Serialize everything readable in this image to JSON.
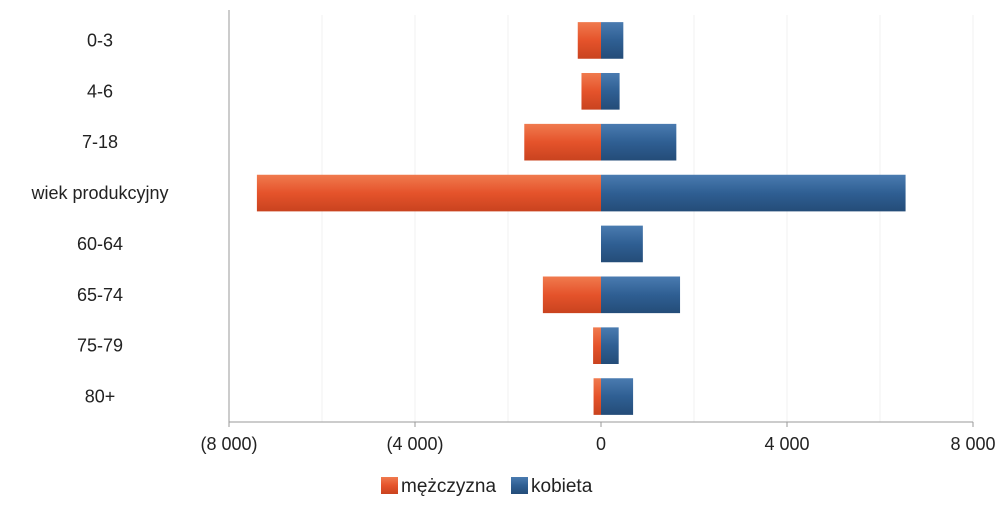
{
  "chart_data": {
    "type": "bar",
    "orientation": "horizontal",
    "stacked": "diverging",
    "categories": [
      "0-3",
      "4-6",
      "7-18",
      "wiek produkcyjny",
      "60-64",
      "65-74",
      "75-79",
      "80+"
    ],
    "series": [
      {
        "name": "mężczyzna",
        "values": [
          -500,
          -420,
          -1650,
          -7400,
          0,
          -1250,
          -170,
          -160
        ],
        "color": "#e5532b"
      },
      {
        "name": "kobieta",
        "values": [
          480,
          400,
          1620,
          6550,
          900,
          1700,
          380,
          690
        ],
        "color": "#2f5f93"
      }
    ],
    "xlim": [
      -8000,
      8000
    ],
    "xticks": [
      -8000,
      -4000,
      0,
      4000,
      8000
    ],
    "xtick_labels": [
      "(8 000)",
      "(4 000)",
      "0",
      "4 000",
      "8 000"
    ],
    "title": "",
    "xlabel": "",
    "ylabel": "",
    "grid": "vertical-faint",
    "legend": {
      "position": "bottom-center",
      "entries": [
        "mężczyzna",
        "kobieta"
      ]
    }
  }
}
